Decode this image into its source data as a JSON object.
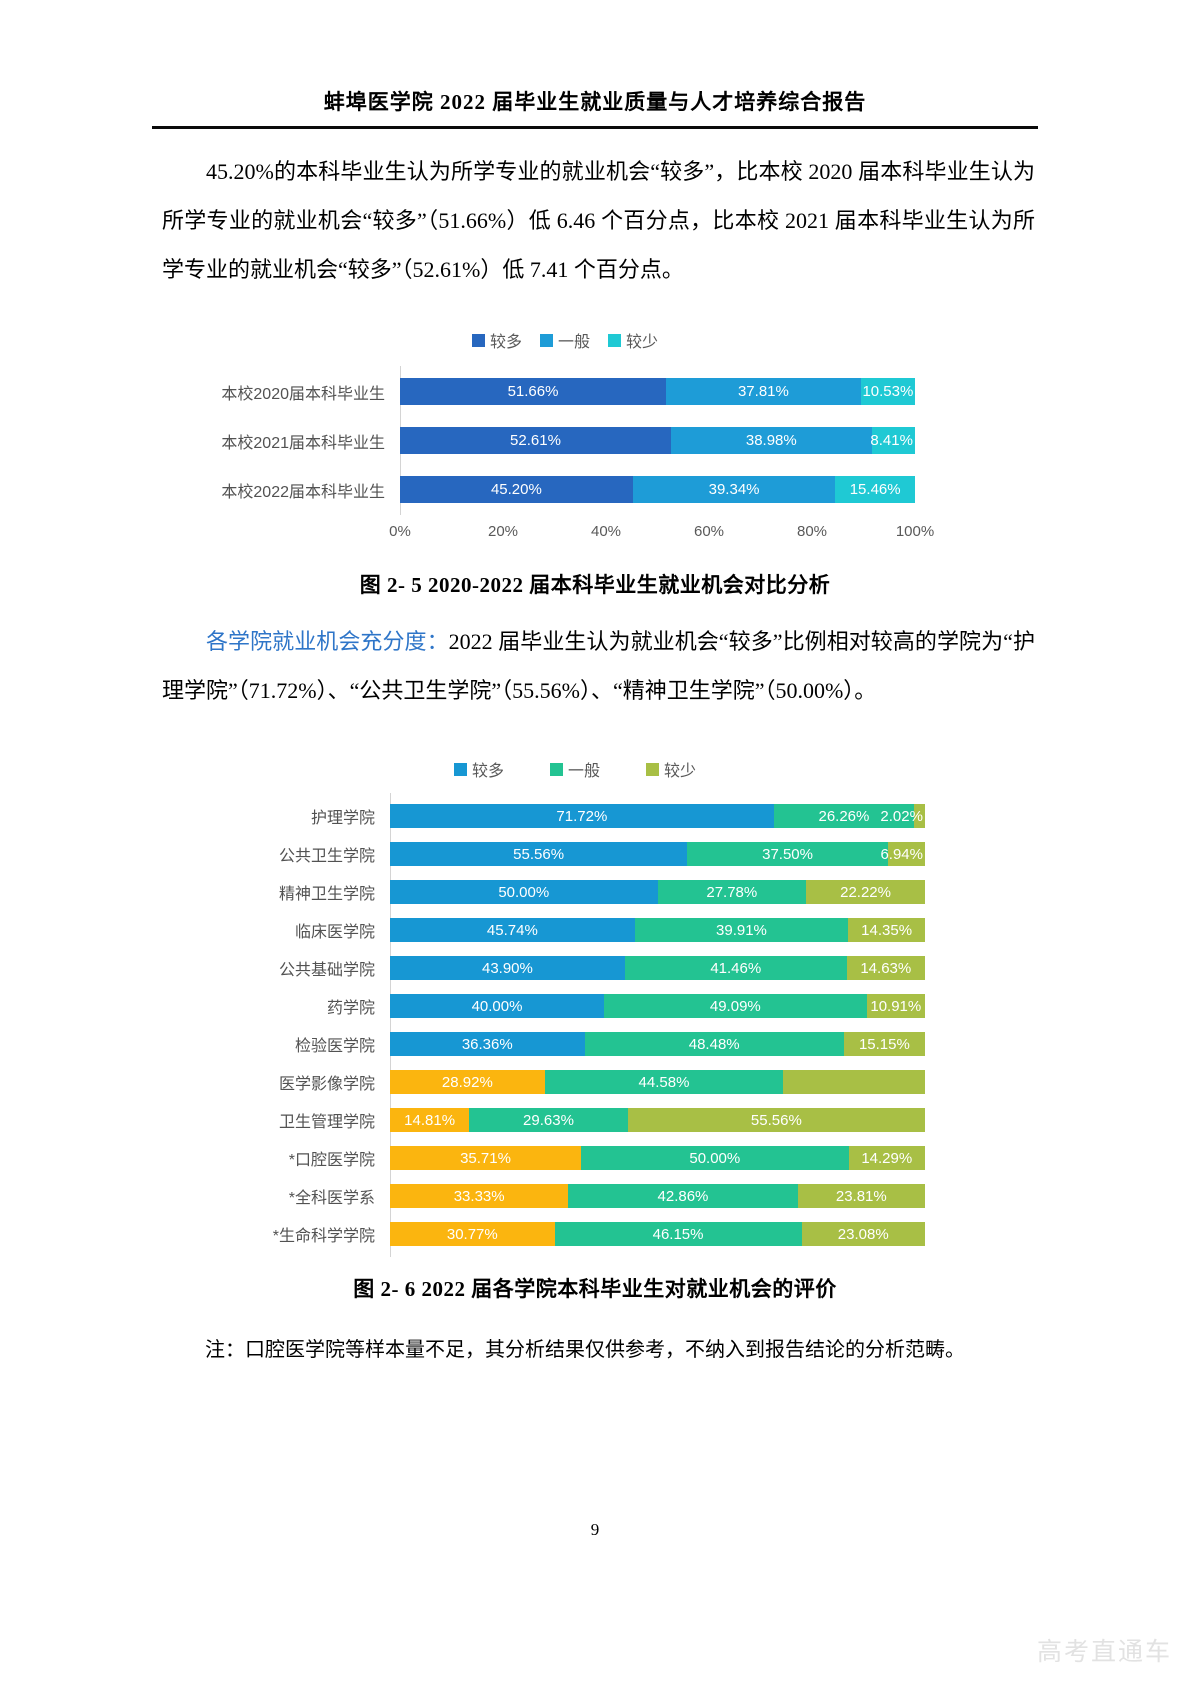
{
  "header": {
    "title": "蚌埠医学院 2022 届毕业生就业质量与人才培养综合报告"
  },
  "paragraphs": {
    "p1": "45.20%的本科毕业生认为所学专业的就业机会“较多”，比本校 2020 届本科毕业生认为所学专业的就业机会“较多”（51.66%）低 6.46 个百分点，比本校 2021 届本科毕业生认为所学专业的就业机会“较多”（52.61%）低 7.41 个百分点。",
    "p2_lead": "各学院就业机会充分度：",
    "p2_rest": "2022 届毕业生认为就业机会“较多”比例相对较高的学院为“护理学院”（71.72%）、“公共卫生学院”（55.56%）、“精神卫生学院”（50.00%）。"
  },
  "figures": {
    "fig5_caption": "图 2- 5 2020-2022 届本科毕业生就业机会对比分析",
    "fig6_caption": "图 2- 6 2022 届各学院本科毕业生对就业机会的评价",
    "fig6_note": "注：口腔医学院等样本量不足，其分析结果仅供参考，不纳入到报告结论的分析范畴。"
  },
  "page": {
    "number": "9",
    "watermark": "高考直通车"
  },
  "colors": {
    "lead_text": "#2E75C8",
    "legend_text": "#595959"
  },
  "chart_data": [
    {
      "type": "bar",
      "orientation": "horizontal",
      "stacked": true,
      "title": "",
      "legend_position": "top",
      "grid": false,
      "xlim": [
        0,
        100
      ],
      "x_ticks": [
        "0%",
        "20%",
        "40%",
        "60%",
        "80%",
        "100%"
      ],
      "palette": {
        "more": "#2767BF",
        "average": "#1E9CD7",
        "less": "#1FC9D4"
      },
      "legend": [
        {
          "label": "较多",
          "key": "more"
        },
        {
          "label": "一般",
          "key": "average"
        },
        {
          "label": "较少",
          "key": "less"
        }
      ],
      "rows": [
        {
          "label": "本校2020届本科毕业生",
          "segments": [
            {
              "key": "more",
              "value": 51.66,
              "text": "51.66%"
            },
            {
              "key": "average",
              "value": 37.81,
              "text": "37.81%"
            },
            {
              "key": "less",
              "value": 10.53,
              "text": "10.53%"
            }
          ]
        },
        {
          "label": "本校2021届本科毕业生",
          "segments": [
            {
              "key": "more",
              "value": 52.61,
              "text": "52.61%"
            },
            {
              "key": "average",
              "value": 38.98,
              "text": "38.98%"
            },
            {
              "key": "less",
              "value": 8.41,
              "text": "8.41%"
            }
          ]
        },
        {
          "label": "本校2022届本科毕业生",
          "segments": [
            {
              "key": "more",
              "value": 45.2,
              "text": "45.20%"
            },
            {
              "key": "average",
              "value": 39.34,
              "text": "39.34%"
            },
            {
              "key": "less",
              "value": 15.46,
              "text": "15.46%"
            }
          ]
        }
      ]
    },
    {
      "type": "bar",
      "orientation": "horizontal",
      "stacked": true,
      "title": "",
      "legend_position": "top",
      "grid": false,
      "xlim": [
        0,
        100
      ],
      "x_ticks": [],
      "palette": {
        "more_blue": "#1797D3",
        "more_orange": "#FBB50F",
        "average": "#23C392",
        "less": "#A8BF45"
      },
      "legend": [
        {
          "label": "较多",
          "key": "more_blue"
        },
        {
          "label": "一般",
          "key": "average"
        },
        {
          "label": "较少",
          "key": "less"
        }
      ],
      "rows": [
        {
          "label": "护理学院",
          "segments": [
            {
              "key": "more_blue",
              "value": 71.72,
              "text": "71.72%"
            },
            {
              "key": "average",
              "value": 26.26,
              "text": "26.26%"
            },
            {
              "key": "less",
              "value": 2.02,
              "text": "2.02%"
            }
          ]
        },
        {
          "label": "公共卫生学院",
          "segments": [
            {
              "key": "more_blue",
              "value": 55.56,
              "text": "55.56%"
            },
            {
              "key": "average",
              "value": 37.5,
              "text": "37.50%"
            },
            {
              "key": "less",
              "value": 6.94,
              "text": "6.94%"
            }
          ]
        },
        {
          "label": "精神卫生学院",
          "segments": [
            {
              "key": "more_blue",
              "value": 50.0,
              "text": "50.00%"
            },
            {
              "key": "average",
              "value": 27.78,
              "text": "27.78%"
            },
            {
              "key": "less",
              "value": 22.22,
              "text": "22.22%"
            }
          ]
        },
        {
          "label": "临床医学院",
          "segments": [
            {
              "key": "more_blue",
              "value": 45.74,
              "text": "45.74%"
            },
            {
              "key": "average",
              "value": 39.91,
              "text": "39.91%"
            },
            {
              "key": "less",
              "value": 14.35,
              "text": "14.35%"
            }
          ]
        },
        {
          "label": "公共基础学院",
          "segments": [
            {
              "key": "more_blue",
              "value": 43.9,
              "text": "43.90%"
            },
            {
              "key": "average",
              "value": 41.46,
              "text": "41.46%"
            },
            {
              "key": "less",
              "value": 14.63,
              "text": "14.63%"
            }
          ]
        },
        {
          "label": "药学院",
          "segments": [
            {
              "key": "more_blue",
              "value": 40.0,
              "text": "40.00%"
            },
            {
              "key": "average",
              "value": 49.09,
              "text": "49.09%"
            },
            {
              "key": "less",
              "value": 10.91,
              "text": "10.91%"
            }
          ]
        },
        {
          "label": "检验医学院",
          "segments": [
            {
              "key": "more_blue",
              "value": 36.36,
              "text": "36.36%"
            },
            {
              "key": "average",
              "value": 48.48,
              "text": "48.48%"
            },
            {
              "key": "less",
              "value": 15.15,
              "text": "15.15%"
            }
          ]
        },
        {
          "label": "医学影像学院",
          "segments": [
            {
              "key": "more_orange",
              "value": 28.92,
              "text": "28.92%"
            },
            {
              "key": "average",
              "value": 44.58,
              "text": "44.58%"
            },
            {
              "key": "less",
              "value": 26.5,
              "text": ""
            }
          ]
        },
        {
          "label": "卫生管理学院",
          "segments": [
            {
              "key": "more_orange",
              "value": 14.81,
              "text": "14.81%"
            },
            {
              "key": "average",
              "value": 29.63,
              "text": "29.63%"
            },
            {
              "key": "less",
              "value": 55.56,
              "text": "55.56%"
            }
          ]
        },
        {
          "label": "*口腔医学院",
          "segments": [
            {
              "key": "more_orange",
              "value": 35.71,
              "text": "35.71%"
            },
            {
              "key": "average",
              "value": 50.0,
              "text": "50.00%"
            },
            {
              "key": "less",
              "value": 14.29,
              "text": "14.29%"
            }
          ]
        },
        {
          "label": "*全科医学系",
          "segments": [
            {
              "key": "more_orange",
              "value": 33.33,
              "text": "33.33%"
            },
            {
              "key": "average",
              "value": 42.86,
              "text": "42.86%"
            },
            {
              "key": "less",
              "value": 23.81,
              "text": "23.81%"
            }
          ]
        },
        {
          "label": "*生命科学学院",
          "segments": [
            {
              "key": "more_orange",
              "value": 30.77,
              "text": "30.77%"
            },
            {
              "key": "average",
              "value": 46.15,
              "text": "46.15%"
            },
            {
              "key": "less",
              "value": 23.08,
              "text": "23.08%"
            }
          ]
        }
      ]
    }
  ]
}
